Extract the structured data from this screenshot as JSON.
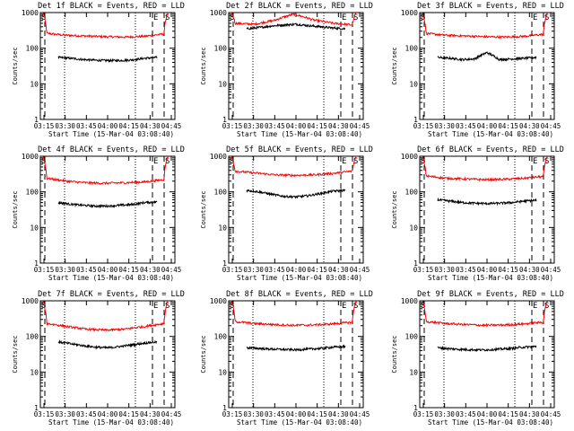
{
  "chart_data": [
    {
      "type": "line",
      "title": "Det 1f BLACK = Events, RED = LLD",
      "ylabel": "Counts/sec",
      "xlabel": "Start Time (15-Mar-04 03:08:40)",
      "x_ticks": [
        "03:15",
        "03:30",
        "03:45",
        "04:00",
        "04:15",
        "04:30",
        "04:45"
      ],
      "y_ticks": [
        "1",
        "10",
        "100",
        "1000"
      ],
      "y_scale": "log",
      "ylim": [
        1,
        1000
      ],
      "markers": {
        "start": "S",
        "end": "E"
      },
      "series": [
        {
          "name": "LLD",
          "color": "#ff0000",
          "levels": [
            1000,
            260,
            230,
            220,
            210,
            205,
            215,
            250,
            1000
          ]
        },
        {
          "name": "Events",
          "color": "#000000",
          "levels": [
            55,
            52,
            48,
            46,
            45,
            45,
            47,
            52,
            55
          ]
        }
      ]
    },
    {
      "type": "line",
      "title": "Det 2f BLACK = Events, RED = LLD",
      "ylabel": "Counts/sec",
      "xlabel": "Start Time (15-Mar-04 03:08:40)",
      "x_ticks": [
        "03:15",
        "03:30",
        "03:45",
        "04:00",
        "04:15",
        "04:30",
        "04:45"
      ],
      "y_ticks": [
        "1",
        "10",
        "100",
        "1000"
      ],
      "y_scale": "log",
      "ylim": [
        1,
        1000
      ],
      "markers": {
        "start": "S",
        "end": "E"
      },
      "series": [
        {
          "name": "LLD",
          "color": "#ff0000",
          "levels": [
            1000,
            500,
            470,
            600,
            900,
            620,
            500,
            450,
            1000
          ]
        },
        {
          "name": "Events",
          "color": "#000000",
          "levels": [
            350,
            380,
            420,
            450,
            470,
            430,
            400,
            370,
            350
          ]
        }
      ]
    },
    {
      "type": "line",
      "title": "Det 3f BLACK = Events, RED = LLD",
      "ylabel": "Counts/sec",
      "xlabel": "Start Time (15-Mar-04 03:08:40)",
      "x_ticks": [
        "03:15",
        "03:30",
        "03:45",
        "04:00",
        "04:15",
        "04:30",
        "04:45"
      ],
      "y_ticks": [
        "1",
        "10",
        "100",
        "1000"
      ],
      "y_scale": "log",
      "ylim": [
        1,
        1000
      ],
      "markers": {
        "start": "S",
        "end": "E"
      },
      "series": [
        {
          "name": "LLD",
          "color": "#ff0000",
          "levels": [
            1000,
            260,
            230,
            220,
            210,
            205,
            215,
            245,
            1000
          ]
        },
        {
          "name": "Events",
          "color": "#000000",
          "levels": [
            55,
            52,
            48,
            50,
            75,
            48,
            50,
            52,
            55
          ]
        }
      ]
    },
    {
      "type": "line",
      "title": "Det 4f BLACK = Events, RED = LLD",
      "ylabel": "Counts/sec",
      "xlabel": "Start Time (15-Mar-04 03:08:40)",
      "x_ticks": [
        "03:15",
        "03:30",
        "03:45",
        "04:00",
        "04:15",
        "04:30",
        "04:45"
      ],
      "y_ticks": [
        "1",
        "10",
        "100",
        "1000"
      ],
      "y_scale": "log",
      "ylim": [
        1,
        1000
      ],
      "markers": {
        "start": "S",
        "end": "E"
      },
      "series": [
        {
          "name": "LLD",
          "color": "#ff0000",
          "levels": [
            1000,
            240,
            200,
            180,
            175,
            180,
            190,
            220,
            1000
          ]
        },
        {
          "name": "Events",
          "color": "#000000",
          "levels": [
            50,
            45,
            42,
            40,
            40,
            42,
            44,
            50,
            52
          ]
        }
      ]
    },
    {
      "type": "line",
      "title": "Det 5f BLACK = Events, RED = LLD",
      "ylabel": "Counts/sec",
      "xlabel": "Start Time (15-Mar-04 03:08:40)",
      "x_ticks": [
        "03:15",
        "03:30",
        "03:45",
        "04:00",
        "04:15",
        "04:30",
        "04:45"
      ],
      "y_ticks": [
        "1",
        "10",
        "100",
        "1000"
      ],
      "y_scale": "log",
      "ylim": [
        1,
        1000
      ],
      "markers": {
        "start": "S",
        "end": "E"
      },
      "series": [
        {
          "name": "LLD",
          "color": "#ff0000",
          "levels": [
            1000,
            380,
            340,
            300,
            290,
            300,
            330,
            380,
            1000
          ]
        },
        {
          "name": "Events",
          "color": "#000000",
          "levels": [
            110,
            100,
            85,
            75,
            72,
            78,
            90,
            105,
            110
          ]
        }
      ]
    },
    {
      "type": "line",
      "title": "Det 6f BLACK = Events, RED = LLD",
      "ylabel": "Counts/sec",
      "xlabel": "Start Time (15-Mar-04 03:08:40)",
      "x_ticks": [
        "03:15",
        "03:30",
        "03:45",
        "04:00",
        "04:15",
        "04:30",
        "04:45"
      ],
      "y_ticks": [
        "1",
        "10",
        "100",
        "1000"
      ],
      "y_scale": "log",
      "ylim": [
        1,
        1000
      ],
      "markers": {
        "start": "S",
        "end": "E"
      },
      "series": [
        {
          "name": "LLD",
          "color": "#ff0000",
          "levels": [
            1000,
            280,
            240,
            230,
            220,
            225,
            240,
            270,
            1000
          ]
        },
        {
          "name": "Events",
          "color": "#000000",
          "levels": [
            60,
            55,
            50,
            48,
            47,
            48,
            50,
            55,
            58
          ]
        }
      ]
    },
    {
      "type": "line",
      "title": "Det 7f BLACK = Events, RED = LLD",
      "ylabel": "Counts/sec",
      "xlabel": "Start Time (15-Mar-04 03:08:40)",
      "x_ticks": [
        "03:15",
        "03:30",
        "03:45",
        "04:00",
        "04:15",
        "04:30",
        "04:45"
      ],
      "y_ticks": [
        "1",
        "10",
        "100",
        "1000"
      ],
      "y_scale": "log",
      "ylim": [
        1,
        1000
      ],
      "markers": {
        "start": "S",
        "end": "E"
      },
      "series": [
        {
          "name": "LLD",
          "color": "#ff0000",
          "levels": [
            1000,
            230,
            190,
            160,
            150,
            160,
            190,
            230,
            1000
          ]
        },
        {
          "name": "Events",
          "color": "#000000",
          "levels": [
            70,
            62,
            55,
            50,
            48,
            52,
            58,
            65,
            70
          ]
        }
      ]
    },
    {
      "type": "line",
      "title": "Det 8f BLACK = Events, RED = LLD",
      "ylabel": "Counts/sec",
      "xlabel": "Start Time (15-Mar-04 03:08:40)",
      "x_ticks": [
        "03:15",
        "03:30",
        "03:45",
        "04:00",
        "04:15",
        "04:30",
        "04:45"
      ],
      "y_ticks": [
        "1",
        "10",
        "100",
        "1000"
      ],
      "y_scale": "log",
      "ylim": [
        1,
        1000
      ],
      "markers": {
        "start": "S",
        "end": "E"
      },
      "series": [
        {
          "name": "LLD",
          "color": "#ff0000",
          "levels": [
            1000,
            260,
            230,
            215,
            205,
            210,
            225,
            250,
            1000
          ]
        },
        {
          "name": "Events",
          "color": "#000000",
          "levels": [
            48,
            46,
            44,
            43,
            42,
            44,
            46,
            50,
            52
          ]
        }
      ]
    },
    {
      "type": "line",
      "title": "Det 9f BLACK = Events, RED = LLD",
      "ylabel": "Counts/sec",
      "xlabel": "Start Time (15-Mar-04 03:08:40)",
      "x_ticks": [
        "03:15",
        "03:30",
        "03:45",
        "04:00",
        "04:15",
        "04:30",
        "04:45"
      ],
      "y_ticks": [
        "1",
        "10",
        "100",
        "1000"
      ],
      "y_scale": "log",
      "ylim": [
        1,
        1000
      ],
      "markers": {
        "start": "S",
        "end": "E"
      },
      "series": [
        {
          "name": "LLD",
          "color": "#ff0000",
          "levels": [
            1000,
            260,
            230,
            215,
            205,
            210,
            225,
            250,
            1000
          ]
        },
        {
          "name": "Events",
          "color": "#000000",
          "levels": [
            48,
            45,
            43,
            42,
            42,
            44,
            46,
            50,
            52
          ]
        }
      ]
    }
  ]
}
